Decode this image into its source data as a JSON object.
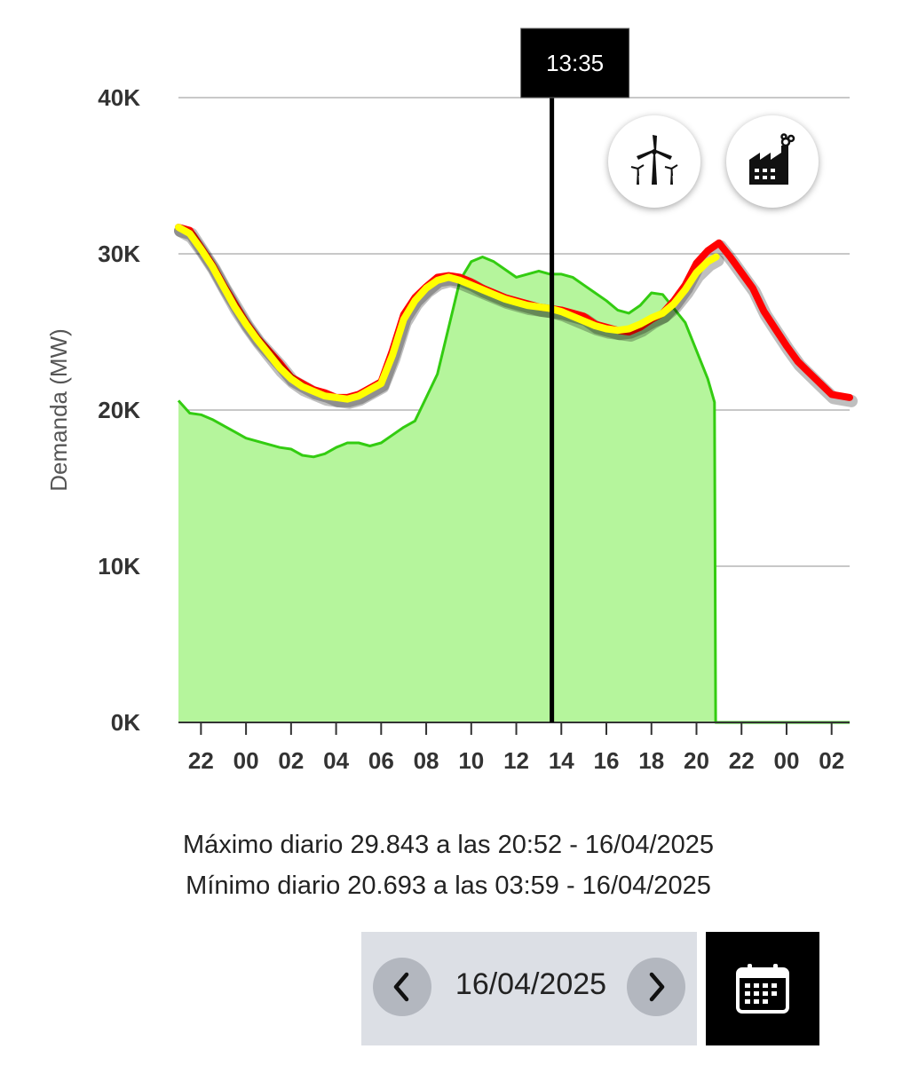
{
  "chart_data": {
    "type": "area",
    "ylabel": "Demanda (MW)",
    "ylim": [
      0,
      40000
    ],
    "y_ticks": [
      0,
      10000,
      20000,
      30000,
      40000
    ],
    "y_tick_labels": [
      "0K",
      "10K",
      "20K",
      "30K",
      "40K"
    ],
    "x_tick_labels": [
      "22",
      "00",
      "02",
      "04",
      "06",
      "08",
      "10",
      "12",
      "14",
      "16",
      "18",
      "20",
      "22",
      "00",
      "02"
    ],
    "x_ticks": [
      22,
      24,
      26,
      28,
      30,
      32,
      34,
      36,
      38,
      40,
      42,
      44,
      46,
      48,
      50
    ],
    "xlim": [
      21,
      50.8
    ],
    "cursor": {
      "x": 37.58,
      "label": "13:35"
    },
    "series": [
      {
        "color": "#33cc11",
        "fill": "#b5f59c",
        "x": [
          21,
          21.5,
          22,
          22.5,
          23,
          23.5,
          24,
          24.5,
          25,
          25.5,
          26,
          26.5,
          27,
          27.5,
          28,
          28.5,
          29,
          29.5,
          30,
          30.5,
          31,
          31.5,
          32,
          32.5,
          33,
          33.5,
          34,
          34.5,
          35,
          35.5,
          36,
          36.5,
          37,
          37.5,
          38,
          38.5,
          39,
          39.5,
          40,
          40.5,
          41,
          41.5,
          42,
          42.5,
          43,
          43.5,
          44,
          44.5,
          44.8,
          44.85,
          45,
          46,
          47,
          48,
          49,
          50,
          50.8
        ],
        "y": [
          20600,
          19800,
          19700,
          19400,
          19000,
          18600,
          18200,
          18000,
          17800,
          17600,
          17500,
          17100,
          17000,
          17200,
          17600,
          17900,
          17900,
          17700,
          17900,
          18400,
          18900,
          19300,
          20800,
          22300,
          25300,
          28300,
          29500,
          29800,
          29500,
          29000,
          28500,
          28700,
          28900,
          28700,
          28700,
          28500,
          28000,
          27500,
          27000,
          26400,
          26200,
          26700,
          27500,
          27400,
          26500,
          25600,
          23800,
          22000,
          20500,
          0,
          0,
          0,
          0,
          0,
          0,
          0,
          0
        ]
      },
      {
        "color": "#ff0000",
        "x": [
          21,
          21.5,
          22,
          22.5,
          23,
          23.5,
          24,
          24.5,
          25,
          25.5,
          26,
          26.5,
          27,
          27.5,
          28,
          28.5,
          29,
          29.5,
          30,
          30.5,
          31,
          31.5,
          32,
          32.5,
          33,
          33.5,
          34,
          34.5,
          35,
          35.5,
          36,
          36.5,
          37,
          37.5,
          38,
          38.5,
          39,
          39.5,
          40,
          40.5,
          41,
          41.5,
          42,
          42.5,
          43,
          43.5,
          44,
          44.5,
          45,
          45.5,
          46,
          46.5,
          47,
          47.5,
          48,
          48.5,
          49,
          49.5,
          50,
          50.8
        ],
        "y": [
          31700,
          31500,
          30400,
          29300,
          28000,
          26800,
          25600,
          24600,
          23800,
          23000,
          22100,
          21700,
          21300,
          21100,
          20800,
          20800,
          21000,
          21400,
          21800,
          23800,
          26100,
          27200,
          27900,
          28500,
          28600,
          28500,
          28200,
          27800,
          27500,
          27200,
          27000,
          26800,
          26600,
          26500,
          26400,
          26200,
          26000,
          25500,
          25300,
          25100,
          25000,
          25300,
          25800,
          26200,
          27000,
          28000,
          29400,
          30200,
          30700,
          29800,
          28800,
          27800,
          26300,
          25200,
          24100,
          23100,
          22400,
          21700,
          21000,
          20800
        ]
      },
      {
        "color": "#ffff00",
        "x": [
          21,
          21.5,
          22,
          22.5,
          23,
          23.5,
          24,
          24.5,
          25,
          25.5,
          26,
          26.5,
          27,
          27.5,
          28,
          28.5,
          29,
          29.5,
          30,
          30.5,
          31,
          31.5,
          32,
          32.5,
          33,
          33.5,
          34,
          34.5,
          35,
          35.5,
          36,
          36.5,
          37,
          37.5,
          38,
          38.5,
          39,
          39.5,
          40,
          40.5,
          41,
          41.5,
          42,
          42.5,
          43,
          43.5,
          44,
          44.5,
          44.87
        ],
        "y": [
          31700,
          31300,
          30300,
          29200,
          27900,
          26600,
          25500,
          24500,
          23600,
          22700,
          22000,
          21500,
          21200,
          20900,
          20800,
          20700,
          20900,
          21300,
          21700,
          23500,
          25800,
          27000,
          27800,
          28300,
          28500,
          28300,
          28000,
          27700,
          27400,
          27100,
          26900,
          26700,
          26600,
          26500,
          26300,
          26000,
          25700,
          25400,
          25200,
          25100,
          25200,
          25500,
          25900,
          26200,
          26800,
          27700,
          28800,
          29500,
          29800
        ]
      }
    ]
  },
  "buttons": {
    "wind_icon": "wind-turbine-icon",
    "factory_icon": "factory-icon"
  },
  "stats": {
    "max_line": "Máximo diario 29.843 a las 20:52 - 16/04/2025",
    "min_line": "Mínimo diario 20.693 a las 03:59 - 16/04/2025"
  },
  "date_nav": {
    "date": "16/04/2025",
    "prev_icon": "chevron-left-icon",
    "next_icon": "chevron-right-icon",
    "calendar_icon": "calendar-icon"
  }
}
